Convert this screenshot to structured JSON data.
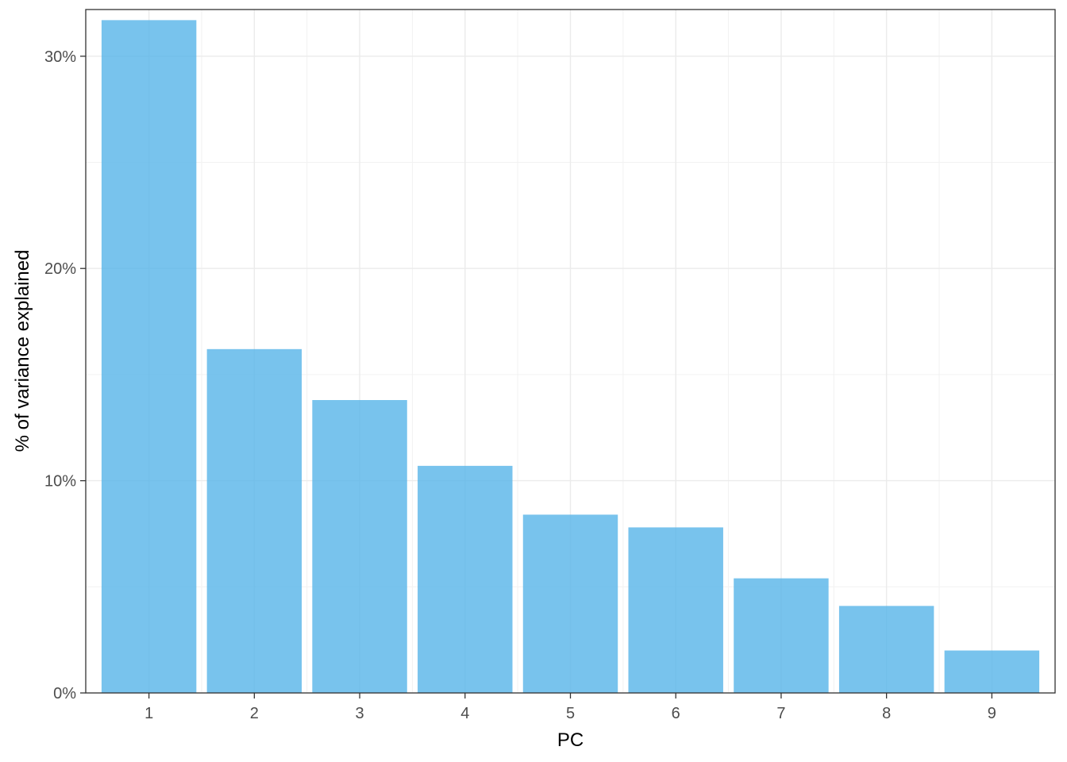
{
  "chart_data": {
    "type": "bar",
    "title": "",
    "xlabel": "PC",
    "ylabel": "% of variance explained",
    "categories": [
      "1",
      "2",
      "3",
      "4",
      "5",
      "6",
      "7",
      "8",
      "9"
    ],
    "values": [
      31.7,
      16.2,
      13.8,
      10.7,
      8.4,
      7.8,
      5.4,
      4.1,
      2.0
    ],
    "ylim": [
      0,
      32.2
    ],
    "yticks": [
      0,
      10,
      20,
      30
    ],
    "ytick_labels": [
      "0%",
      "10%",
      "20%",
      "30%"
    ],
    "grid": true,
    "bar_color": "#56B4E9",
    "bar_opacity": 0.8,
    "legend": "none"
  }
}
